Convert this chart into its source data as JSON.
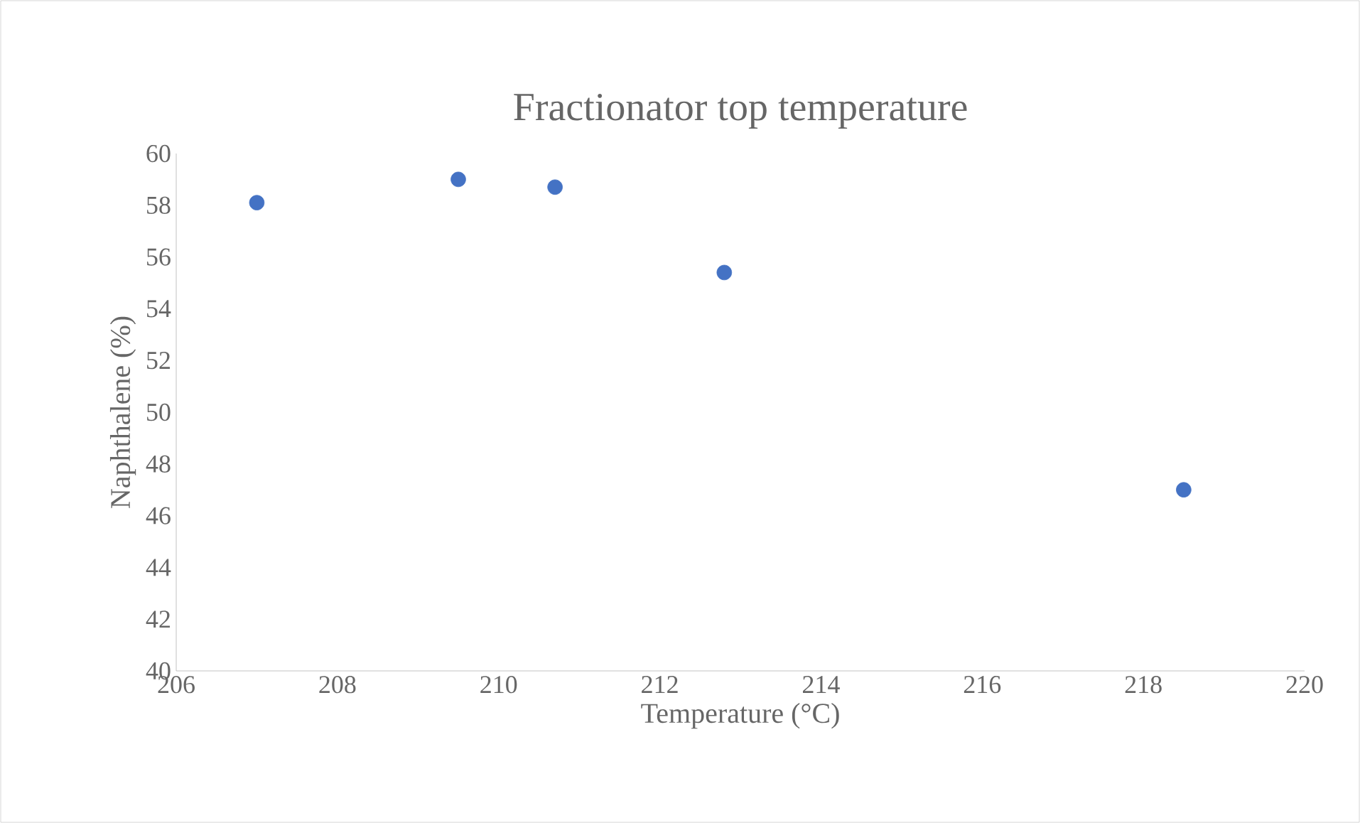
{
  "chart_data": {
    "type": "scatter",
    "title": "Fractionator top temperature",
    "xlabel": "Temperature (°C)",
    "ylabel": "Naphthalene (%)",
    "series": [
      {
        "color": "#4472c4",
        "x": [
          207.0,
          209.5,
          210.7,
          212.8,
          218.5
        ],
        "values": [
          58.1,
          59.0,
          58.7,
          55.4,
          47.0
        ]
      }
    ],
    "marker": "circle",
    "grid": false,
    "xlim": [
      206,
      220
    ],
    "xticks": [
      206,
      208,
      210,
      212,
      214,
      216,
      218,
      220
    ],
    "ylim": [
      40,
      60
    ],
    "yticks": [
      40,
      42,
      44,
      46,
      48,
      50,
      52,
      54,
      56,
      58,
      60
    ]
  }
}
